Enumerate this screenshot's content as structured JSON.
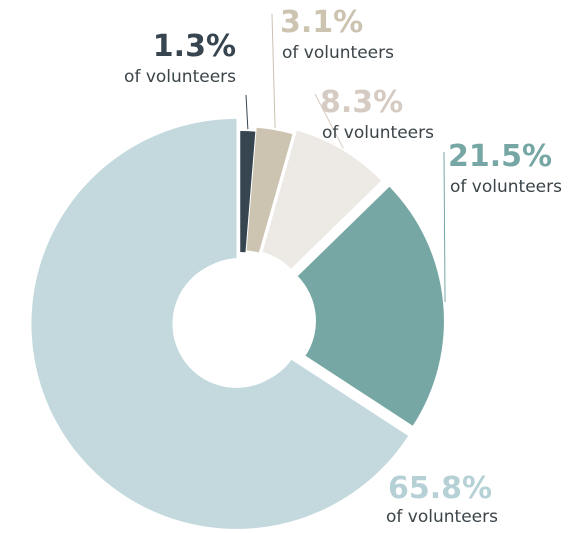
{
  "chart_data": {
    "type": "pie",
    "style": "exploded-donut",
    "slices": [
      {
        "value": 1.3,
        "label": "1.3%",
        "sublabel": "of volunteers",
        "color": "#36454f"
      },
      {
        "value": 3.1,
        "label": "3.1%",
        "sublabel": "of volunteers",
        "color": "#ccc3b1"
      },
      {
        "value": 8.3,
        "label": "8.3%",
        "sublabel": "of volunteers",
        "color": "#ede9e4"
      },
      {
        "value": 21.5,
        "label": "21.5%",
        "sublabel": "of volunteers",
        "color": "#76a7a4"
      },
      {
        "value": 65.8,
        "label": "65.8%",
        "sublabel": "of volunteers",
        "color": "#c3d9dd"
      }
    ],
    "label_colors": {
      "1.3%": "#36454f",
      "3.1%": "#ccc3b1",
      "8.3%": "#d6cbc2",
      "21.5%": "#76a7a4",
      "65.8%": "#b6d1d6"
    }
  }
}
